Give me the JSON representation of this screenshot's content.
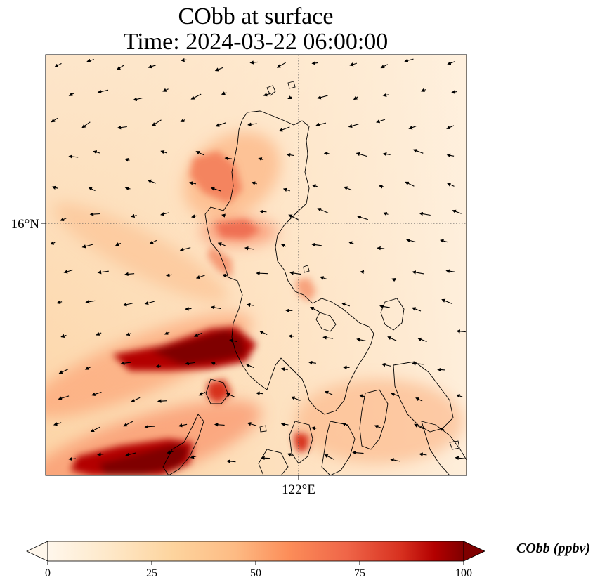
{
  "title": {
    "line1": "CObb at surface",
    "line2": "Time: 2024-03-22 06:00:00"
  },
  "map": {
    "lat_ticks": [
      {
        "label": "16°N",
        "value": 16
      }
    ],
    "lon_ticks": [
      {
        "label": "122°E",
        "value": 122
      }
    ],
    "gridlines": "dotted",
    "features": [
      "coastlines",
      "wind-vectors",
      "cobb-field"
    ],
    "colormap": "OrRd",
    "colors": {
      "low": "#fff7ec",
      "mid": "#fdbb84",
      "high": "#7f0000",
      "coastline": "#000000",
      "vector": "#000000"
    }
  },
  "colorbar": {
    "label": "CObb (ppbv)",
    "min": 0,
    "max": 100,
    "ticks": [
      {
        "value": 0,
        "label": "0"
      },
      {
        "value": 25,
        "label": "25"
      },
      {
        "value": 50,
        "label": "50"
      },
      {
        "value": 75,
        "label": "75"
      },
      {
        "value": 100,
        "label": "100"
      }
    ],
    "extend": "both"
  }
}
